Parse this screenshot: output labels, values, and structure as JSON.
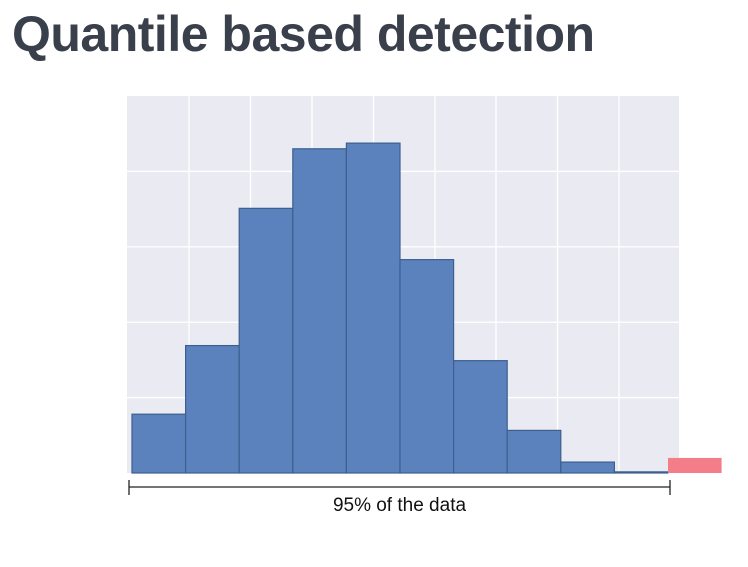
{
  "slide": {
    "title": "Quantile based detection"
  },
  "colors": {
    "plot_background": "#eaeaf2",
    "grid": "#ffffff",
    "bar_fill": "#5b82bd",
    "bar_stroke": "#3c5f8f",
    "outlier_fill": "#f47d8a",
    "bracket": "#222222"
  },
  "chart_data": {
    "type": "bar",
    "subtype": "histogram",
    "title": "",
    "xlabel": "",
    "ylabel": "",
    "axis_labels_visible": false,
    "grid": true,
    "ylim": [
      0,
      100
    ],
    "bins": [
      {
        "values": 15.6,
        "highlight": false
      },
      {
        "values": 33.8,
        "highlight": false
      },
      {
        "values": 70.2,
        "highlight": false
      },
      {
        "values": 86.0,
        "highlight": false
      },
      {
        "values": 87.5,
        "highlight": false
      },
      {
        "values": 56.6,
        "highlight": false
      },
      {
        "values": 29.8,
        "highlight": false
      },
      {
        "values": 11.3,
        "highlight": false
      },
      {
        "values": 2.9,
        "highlight": false
      },
      {
        "values": 0.3,
        "highlight": false
      },
      {
        "values": 4.0,
        "highlight": true
      }
    ],
    "bracket_covers_bins": 10,
    "annotation": {
      "text": "95% of the data"
    }
  }
}
